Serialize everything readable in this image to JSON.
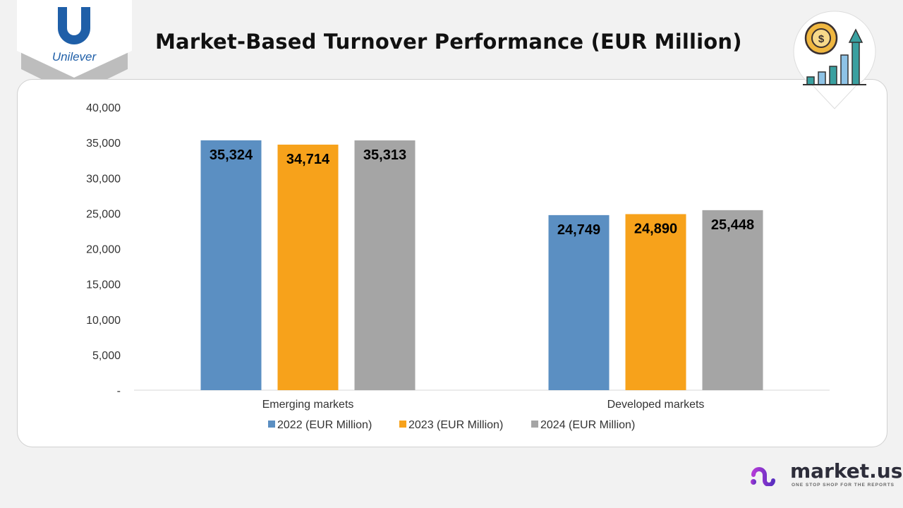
{
  "header": {
    "title": "Market-Based Turnover Performance (EUR Million)",
    "logo_text": "Unilever"
  },
  "branding": {
    "name": "market.us",
    "tagline": "ONE STOP SHOP FOR THE REPORTS"
  },
  "chart_data": {
    "type": "bar",
    "title": "Market-Based Turnover Performance (EUR Million)",
    "categories": [
      "Emerging markets",
      "Developed markets"
    ],
    "series": [
      {
        "name": "2022 (EUR Million)",
        "color": "#5b8fc2",
        "values": [
          35324,
          24749
        ]
      },
      {
        "name": "2023 (EUR Million)",
        "color": "#f7a21b",
        "values": [
          34714,
          24890
        ]
      },
      {
        "name": "2024 (EUR Million)",
        "color": "#a5a5a5",
        "values": [
          35313,
          25448
        ]
      }
    ],
    "data_labels": [
      [
        "35,324",
        "24,749"
      ],
      [
        "34,714",
        "24,890"
      ],
      [
        "35,313",
        "25,448"
      ]
    ],
    "ylim": [
      0,
      40000
    ],
    "yticks": [
      0,
      5000,
      10000,
      15000,
      20000,
      25000,
      30000,
      35000,
      40000
    ],
    "ytick_labels": [
      "-",
      "5,000",
      "10,000",
      "15,000",
      "20,000",
      "25,000",
      "30,000",
      "35,000",
      "40,000"
    ],
    "grid": false,
    "legend": "bottom"
  }
}
